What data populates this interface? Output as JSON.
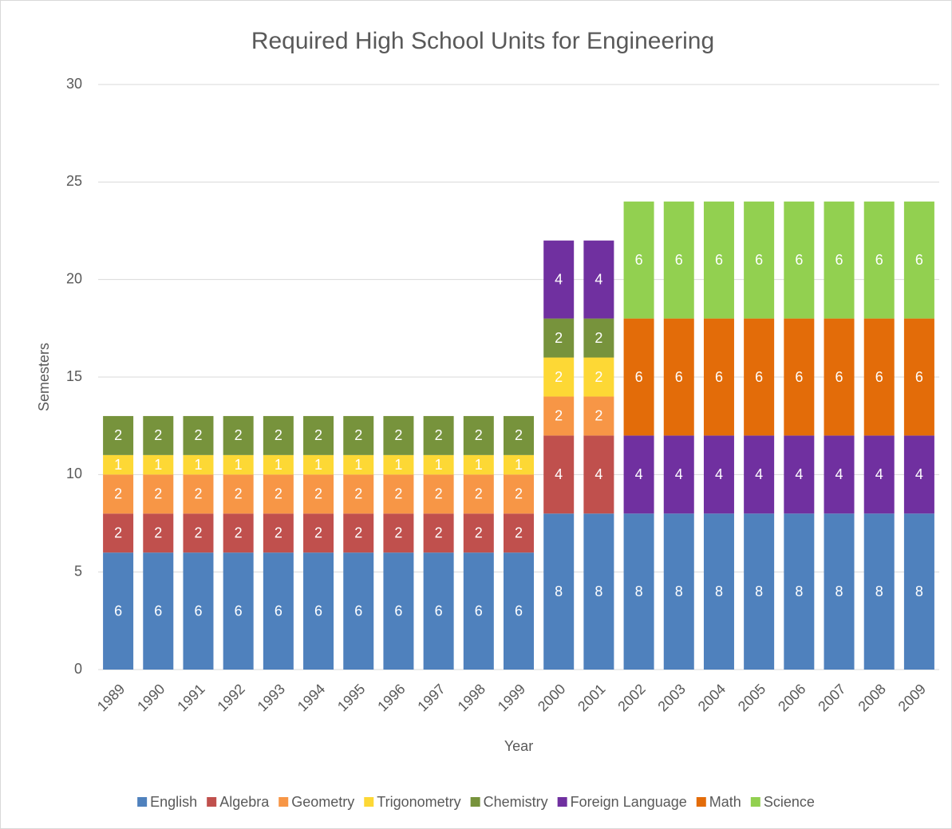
{
  "chart_data": {
    "type": "stacked_bar",
    "title": "Required High School Units for Engineering",
    "x_label": "Year",
    "y_label": "Semesters",
    "categories": [
      "1989",
      "1990",
      "1991",
      "1992",
      "1993",
      "1994",
      "1995",
      "1996",
      "1997",
      "1998",
      "1999",
      "2000",
      "2001",
      "2002",
      "2003",
      "2004",
      "2005",
      "2006",
      "2007",
      "2008",
      "2009"
    ],
    "series": [
      {
        "name": "English",
        "color": "#4f81bd",
        "values": [
          6,
          6,
          6,
          6,
          6,
          6,
          6,
          6,
          6,
          6,
          6,
          8,
          8,
          8,
          8,
          8,
          8,
          8,
          8,
          8,
          8
        ]
      },
      {
        "name": "Algebra",
        "color": "#c0504d",
        "values": [
          2,
          2,
          2,
          2,
          2,
          2,
          2,
          2,
          2,
          2,
          2,
          4,
          4,
          null,
          null,
          null,
          null,
          null,
          null,
          null,
          null
        ]
      },
      {
        "name": "Geometry",
        "color": "#f79646",
        "values": [
          2,
          2,
          2,
          2,
          2,
          2,
          2,
          2,
          2,
          2,
          2,
          2,
          2,
          null,
          null,
          null,
          null,
          null,
          null,
          null,
          null
        ]
      },
      {
        "name": "Trigonometry",
        "color": "#fdd835",
        "values": [
          1,
          1,
          1,
          1,
          1,
          1,
          1,
          1,
          1,
          1,
          1,
          2,
          2,
          null,
          null,
          null,
          null,
          null,
          null,
          null,
          null
        ]
      },
      {
        "name": "Chemistry",
        "color": "#77933c",
        "values": [
          2,
          2,
          2,
          2,
          2,
          2,
          2,
          2,
          2,
          2,
          2,
          2,
          2,
          null,
          null,
          null,
          null,
          null,
          null,
          null,
          null
        ]
      },
      {
        "name": "Foreign Language",
        "color": "#7030a0",
        "values": [
          null,
          null,
          null,
          null,
          null,
          null,
          null,
          null,
          null,
          null,
          null,
          4,
          4,
          4,
          4,
          4,
          4,
          4,
          4,
          4,
          4
        ]
      },
      {
        "name": "Math",
        "color": "#e36c09",
        "values": [
          null,
          null,
          null,
          null,
          null,
          null,
          null,
          null,
          null,
          null,
          null,
          null,
          null,
          6,
          6,
          6,
          6,
          6,
          6,
          6,
          6
        ]
      },
      {
        "name": "Science",
        "color": "#92d050",
        "values": [
          null,
          null,
          null,
          null,
          null,
          null,
          null,
          null,
          null,
          null,
          null,
          null,
          null,
          6,
          6,
          6,
          6,
          6,
          6,
          6,
          6
        ]
      }
    ],
    "ylim": [
      0,
      30
    ],
    "yticks": [
      0,
      5,
      10,
      15,
      20,
      25,
      30
    ],
    "grid": true,
    "legend": "bottom"
  }
}
